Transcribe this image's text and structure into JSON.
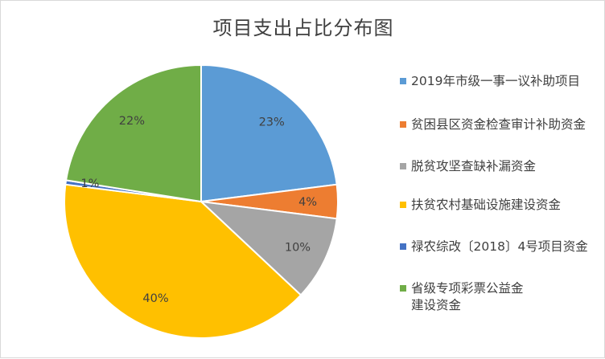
{
  "chart_data": {
    "type": "pie",
    "title": "项目支出占比分布图",
    "slices": [
      {
        "label": "2019年市级一事一议补助项目",
        "value": 23,
        "display": "23%",
        "color": "#5b9bd5"
      },
      {
        "label": "贫困县区资金检查审计补助资金",
        "value": 4,
        "display": "4%",
        "color": "#ed7d31"
      },
      {
        "label": "脱贫攻坚查缺补漏资金",
        "value": 10,
        "display": "10%",
        "color": "#a5a5a5"
      },
      {
        "label": "扶贫农村基础设施建设资金",
        "value": 40,
        "display": "40%",
        "color": "#ffc000"
      },
      {
        "label": "禄农综改〔2018〕4号项目资金",
        "value": 0.5,
        "display": "1%",
        "color": "#4472c4"
      },
      {
        "label": "省级专项彩票公益金建设资金",
        "value": 22.5,
        "display": "22%",
        "color": "#70ad47"
      }
    ],
    "legend_position": "right"
  }
}
